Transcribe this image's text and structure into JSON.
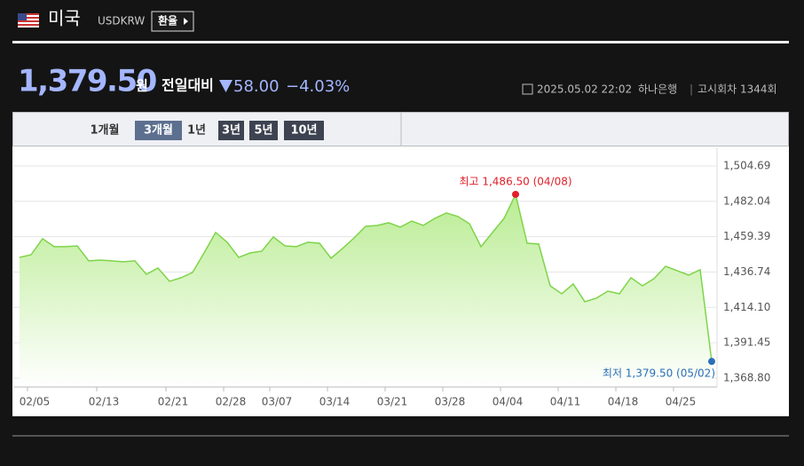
{
  "header": {
    "country": "미국",
    "code": "USDKRW",
    "button": "환율"
  },
  "quote": {
    "price": "1,379.50",
    "unit": "원",
    "change_label": "전일대비",
    "change": "58.00",
    "change_pct": "−4.03%",
    "datetime": "2025.05.02 22:02",
    "bank": "하나은행",
    "round": "고시회차 1344회"
  },
  "tabs": [
    "1개월",
    "3개월",
    "1년",
    "3년",
    "5년",
    "10년"
  ],
  "chart_data": {
    "type": "area",
    "color": "#7fd44a",
    "categories": [
      null,
      "02/05",
      null,
      null,
      null,
      null,
      null,
      "02/13",
      null,
      null,
      null,
      null,
      null,
      "02/21",
      null,
      null,
      null,
      null,
      "02/28",
      null,
      null,
      null,
      "03/07",
      null,
      null,
      null,
      null,
      "03/14",
      null,
      null,
      null,
      null,
      "03/21",
      null,
      null,
      null,
      null,
      "03/28",
      null,
      null,
      null,
      null,
      "04/04",
      null,
      null,
      null,
      null,
      "04/11",
      null,
      null,
      null,
      null,
      "04/18",
      null,
      null,
      null,
      null,
      "04/25",
      null,
      null,
      null
    ],
    "values": [
      1446.1,
      1447.8,
      1458.1,
      1453.0,
      1453.0,
      1453.5,
      1443.9,
      1444.4,
      1443.9,
      1443.3,
      1443.9,
      1435.3,
      1439.3,
      1430.8,
      1433.1,
      1436.5,
      1449.0,
      1462.1,
      1455.8,
      1446.1,
      1449.0,
      1450.1,
      1459.2,
      1453.5,
      1453.0,
      1455.8,
      1455.2,
      1445.6,
      1451.8,
      1458.6,
      1466.0,
      1466.6,
      1468.3,
      1465.5,
      1469.4,
      1466.6,
      1471.1,
      1474.6,
      1472.3,
      1467.7,
      1453.0,
      1462.1,
      1471.1,
      1486.5,
      1455.2,
      1454.7,
      1427.9,
      1422.8,
      1429.1,
      1417.7,
      1420.0,
      1424.5,
      1422.8,
      1433.1,
      1427.9,
      1432.5,
      1440.4,
      1437.6,
      1434.8,
      1438.2,
      1379.5
    ],
    "ylim": [
      1363.1,
      1516.6
    ],
    "yticks": [
      {
        "value": 1504.69,
        "label": "1,504.69"
      },
      {
        "value": 1482.04,
        "label": "1,482.04"
      },
      {
        "value": 1459.39,
        "label": "1,459.39"
      },
      {
        "value": 1436.74,
        "label": "1,436.74"
      },
      {
        "value": 1414.1,
        "label": "1,414.10"
      },
      {
        "value": 1391.45,
        "label": "1,391.45"
      },
      {
        "value": 1368.8,
        "label": "1,368.80"
      }
    ],
    "grid": true,
    "annotations": [
      {
        "text": "최고 1,486.50 (04/08)",
        "index": 43,
        "color": "#e0202a"
      },
      {
        "text": "최저 1,379.50 (05/02)",
        "index": 60,
        "color": "#2a6fb8"
      }
    ]
  }
}
